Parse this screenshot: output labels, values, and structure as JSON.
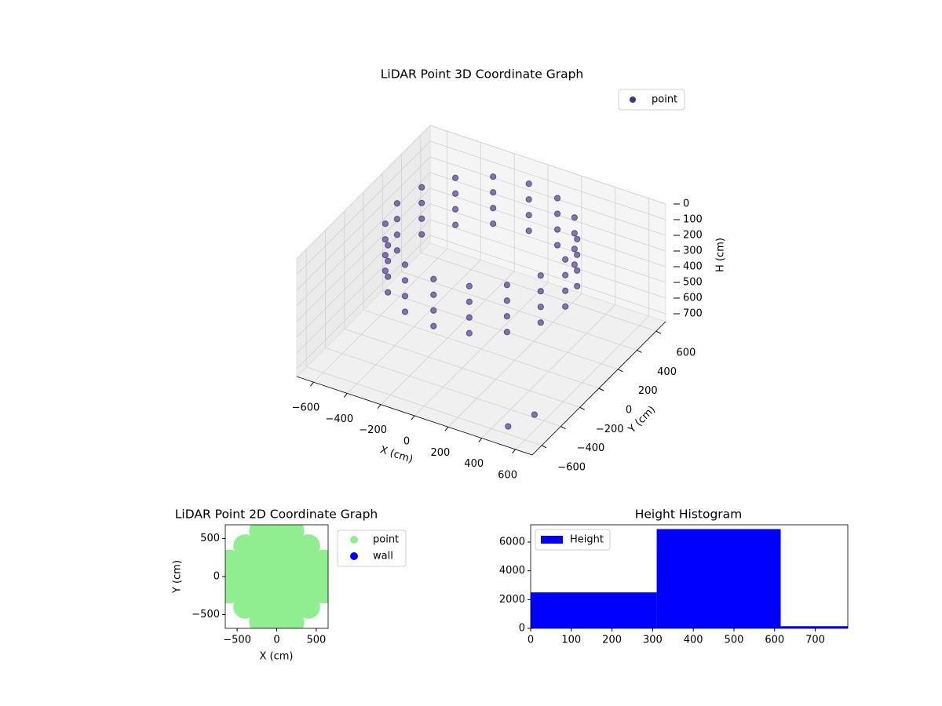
{
  "chart_data": [
    {
      "type": "scatter3d",
      "title": "LiDAR Point 3D Coordinate Graph",
      "xlabel": "X (cm)",
      "ylabel": "Y (cm)",
      "zlabel": "H (cm)",
      "xlim": [
        -700,
        700
      ],
      "ylim": [
        -700,
        700
      ],
      "zlim": [
        750,
        0
      ],
      "xticks": [
        {
          "value": -600,
          "label": "−600"
        },
        {
          "value": -400,
          "label": "−400"
        },
        {
          "value": -200,
          "label": "−200"
        },
        0,
        200,
        400,
        600
      ],
      "yticks": [
        {
          "value": -600,
          "label": "−600"
        },
        {
          "value": -400,
          "label": "−400"
        },
        {
          "value": -200,
          "label": "−200"
        },
        0,
        200,
        400,
        600
      ],
      "zticks": [
        0,
        100,
        200,
        300,
        400,
        500,
        600,
        700
      ],
      "grid": true,
      "legend": "upper right",
      "series": [
        {
          "name": "point",
          "color": "#46337e",
          "x": [
            500,
            500,
            500,
            500,
            462,
            462,
            462,
            462,
            354,
            354,
            354,
            354,
            191,
            191,
            191,
            191,
            0,
            0,
            0,
            0,
            -191,
            -191,
            -191,
            -191,
            -354,
            -354,
            -354,
            -354,
            -462,
            -462,
            -462,
            -462,
            -500,
            -500,
            -500,
            -500,
            -462,
            -462,
            -462,
            -462,
            -354,
            -354,
            -354,
            -354,
            -191,
            -191,
            -191,
            -191,
            0,
            0,
            0,
            0,
            191,
            191,
            191,
            191,
            354,
            354,
            354,
            354,
            462,
            462,
            462,
            462,
            600,
            500
          ],
          "y": [
            0,
            0,
            0,
            0,
            191,
            191,
            191,
            191,
            354,
            354,
            354,
            354,
            462,
            462,
            462,
            462,
            500,
            500,
            500,
            500,
            462,
            462,
            462,
            462,
            354,
            354,
            354,
            354,
            191,
            191,
            191,
            191,
            0,
            0,
            0,
            0,
            -191,
            -191,
            -191,
            -191,
            -354,
            -354,
            -354,
            -354,
            -462,
            -462,
            -462,
            -462,
            -500,
            -500,
            -500,
            -500,
            -462,
            -462,
            -462,
            -462,
            -354,
            -354,
            -354,
            -354,
            -191,
            -191,
            -191,
            -191,
            -500,
            -600
          ],
          "z": [
            0,
            100,
            200,
            300,
            0,
            100,
            200,
            300,
            0,
            100,
            200,
            300,
            0,
            100,
            200,
            300,
            0,
            100,
            200,
            300,
            0,
            100,
            200,
            300,
            0,
            100,
            200,
            300,
            0,
            100,
            200,
            300,
            0,
            100,
            200,
            300,
            0,
            100,
            200,
            300,
            0,
            100,
            200,
            300,
            0,
            100,
            200,
            300,
            0,
            100,
            200,
            300,
            0,
            100,
            200,
            300,
            0,
            100,
            200,
            300,
            0,
            100,
            200,
            300,
            650,
            700
          ]
        }
      ]
    },
    {
      "type": "scatter",
      "title": "LiDAR Point 2D Coordinate Graph",
      "xlabel": "X (cm)",
      "ylabel": "Y (cm)",
      "xlim": [
        -650,
        650
      ],
      "ylim": [
        -680,
        680
      ],
      "xticks": [
        {
          "value": -500,
          "label": "−500"
        },
        0,
        500
      ],
      "yticks": [
        {
          "value": -500,
          "label": "−500"
        },
        0,
        500
      ],
      "legend": "right",
      "series": [
        {
          "name": "point",
          "color": "#90ee90",
          "x": [
            -600,
            -600,
            -600,
            -400,
            -400,
            -400,
            -400,
            -400,
            -200,
            -200,
            -200,
            -200,
            -200,
            -200,
            -200,
            0,
            0,
            0,
            0,
            0,
            0,
            0,
            200,
            200,
            200,
            200,
            200,
            200,
            200,
            400,
            400,
            400,
            400,
            400,
            600,
            600,
            600
          ],
          "y": [
            -200,
            0,
            200,
            -400,
            -200,
            0,
            200,
            400,
            -600,
            -400,
            -200,
            0,
            200,
            400,
            600,
            -600,
            -400,
            -200,
            0,
            200,
            400,
            600,
            -600,
            -400,
            -200,
            0,
            200,
            400,
            600,
            -400,
            -200,
            0,
            200,
            400,
            -200,
            0,
            200
          ]
        },
        {
          "name": "wall",
          "color": "#0000ff",
          "x": [],
          "y": []
        }
      ]
    },
    {
      "type": "histogram",
      "title": "Height Histogram",
      "name": "Height",
      "color": "#0000ff",
      "bins": [
        0,
        310,
        615,
        780
      ],
      "counts": [
        2500,
        6900,
        150
      ],
      "xlim": [
        0,
        780
      ],
      "ylim": [
        0,
        7200
      ],
      "xticks": [
        0,
        100,
        200,
        300,
        400,
        500,
        600,
        700
      ],
      "yticks": [
        0,
        2000,
        4000,
        6000
      ],
      "legend": "upper left"
    }
  ]
}
